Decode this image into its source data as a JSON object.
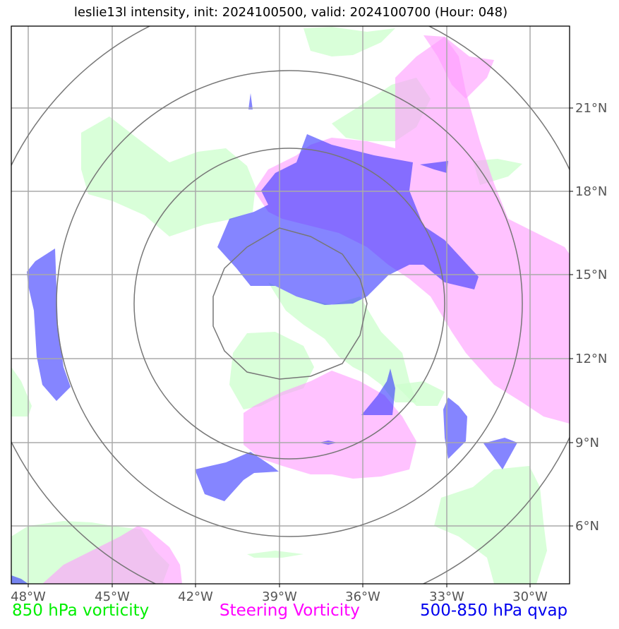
{
  "title": "leslie13l intensity, init: 2024100500, valid: 2024100700 (Hour: 048)",
  "colors": {
    "vorticity_850": "#ccffcc",
    "steering_vorticity": "#ff99ff",
    "qvap": "#3333ff",
    "grid": "#aaaaaa",
    "rings": "#777777"
  },
  "axes": {
    "lon_labels": [
      "48°W",
      "45°W",
      "42°W",
      "39°W",
      "36°W",
      "33°W",
      "30°W"
    ],
    "lat_labels": [
      "21°N",
      "18°N",
      "15°N",
      "12°N",
      "9°N",
      "6°N"
    ]
  },
  "legend": {
    "vorticity_850": "850 hPa vorticity",
    "steering_vorticity": "Steering Vorticity",
    "qvap": "500-850 hPa qvap"
  }
}
